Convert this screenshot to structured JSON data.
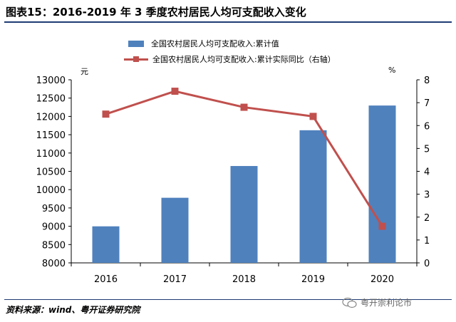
{
  "header": {
    "title": "图表15：2016-2019 年 3 季度农村居民人均可支配收入变化"
  },
  "chart_data": {
    "type": "bar",
    "categories": [
      "2016",
      "2017",
      "2018",
      "2019",
      "2020"
    ],
    "series": [
      {
        "name": "全国农村居民人均可支配收入:累计值",
        "type": "bar",
        "axis": "left",
        "values": [
          8998,
          9778,
          10645,
          11622,
          12297
        ]
      },
      {
        "name": "全国农村居民人均可支配收入:累计实际同比（右轴）",
        "type": "line",
        "axis": "right",
        "values": [
          6.5,
          7.5,
          6.8,
          6.4,
          1.6
        ]
      }
    ],
    "y_left": {
      "unit": "元",
      "ylim": [
        8000,
        13000
      ],
      "ticks": [
        8000,
        8500,
        9000,
        9500,
        10000,
        10500,
        11000,
        11500,
        12000,
        12500,
        13000
      ]
    },
    "y_right": {
      "unit": "%",
      "ylim": [
        0,
        8
      ],
      "ticks": [
        0,
        1,
        2,
        3,
        4,
        5,
        6,
        7,
        8
      ]
    },
    "grid": false,
    "legend": "top",
    "colors": {
      "bar": "#4f81bd",
      "line": "#c0504d"
    }
  },
  "footer": {
    "source": "资料来源：wind、粤开证券研究院",
    "watermark": "粤开崇利论市"
  }
}
